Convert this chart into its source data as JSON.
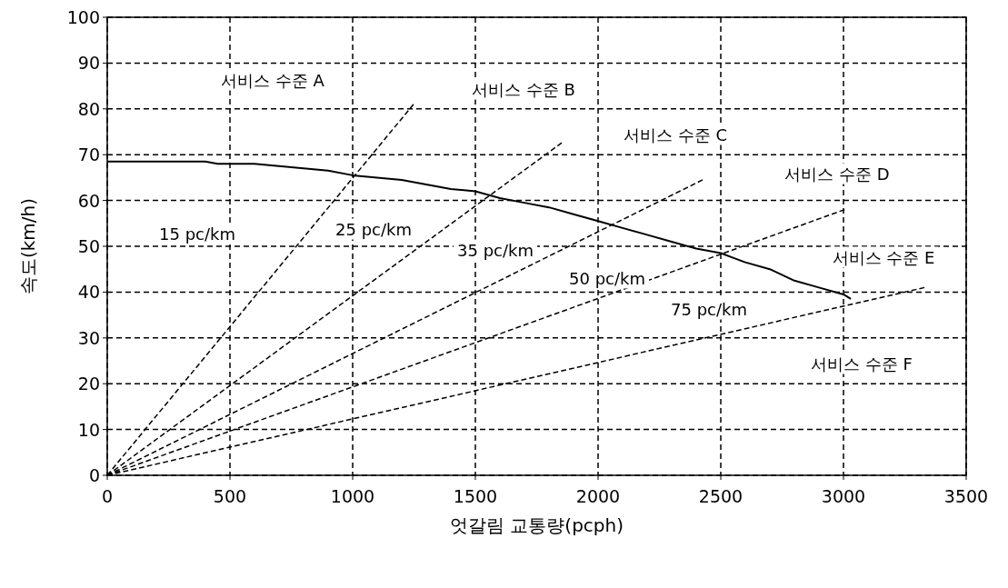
{
  "chart_data": {
    "type": "line",
    "xlabel": "엇갈림 교통량(pcph)",
    "ylabel": "속도(km/h)",
    "xlim": [
      0,
      3500
    ],
    "ylim": [
      0,
      100
    ],
    "xticks": [
      0,
      500,
      1000,
      1500,
      2000,
      2500,
      3000,
      3500
    ],
    "yticks": [
      0,
      10,
      20,
      30,
      40,
      50,
      60,
      70,
      80,
      90,
      100
    ],
    "grid": true,
    "series": [
      {
        "color": "#000000",
        "line_style": "solid",
        "x": [
          0,
          150,
          400,
          450,
          600,
          700,
          800,
          900,
          1000,
          1100,
          1200,
          1300,
          1400,
          1500,
          1600,
          1700,
          1800,
          1900,
          2000,
          2100,
          2200,
          2300,
          2400,
          2500,
          2550,
          2600,
          2700,
          2800,
          2900,
          3000,
          3030
        ],
        "values": [
          68.5,
          68.5,
          68.5,
          68,
          68,
          67.5,
          67,
          66.5,
          65.5,
          65,
          64.5,
          63.5,
          62.5,
          62,
          60.5,
          59.5,
          58.5,
          57,
          55.5,
          54,
          52.5,
          51,
          49.5,
          48.5,
          47.5,
          46.5,
          45,
          42.5,
          41,
          39.5,
          38.5
        ]
      },
      {
        "color": "#000000",
        "line_style": "dashed",
        "x": [
          0,
          1248
        ],
        "values": [
          0,
          81
        ]
      },
      {
        "color": "#000000",
        "line_style": "dashed",
        "x": [
          0,
          1852
        ],
        "values": [
          0,
          72.6
        ]
      },
      {
        "color": "#000000",
        "line_style": "dashed",
        "x": [
          0,
          2426
        ],
        "values": [
          0,
          64.5
        ]
      },
      {
        "color": "#000000",
        "line_style": "dashed",
        "x": [
          0,
          3004
        ],
        "values": [
          0,
          58
        ]
      },
      {
        "color": "#000000",
        "line_style": "dashed",
        "x": [
          0,
          3330
        ],
        "values": [
          0,
          41
        ]
      }
    ],
    "annotations": [
      "서비스 수준 A",
      "서비스 수준 B",
      "서비스 수준 C",
      "서비스 수준 D",
      "서비스 수준 E",
      "서비스 수준 F",
      "15 pc/km",
      "25 pc/km",
      "35 pc/km",
      "50 pc/km",
      "75 pc/km"
    ]
  }
}
